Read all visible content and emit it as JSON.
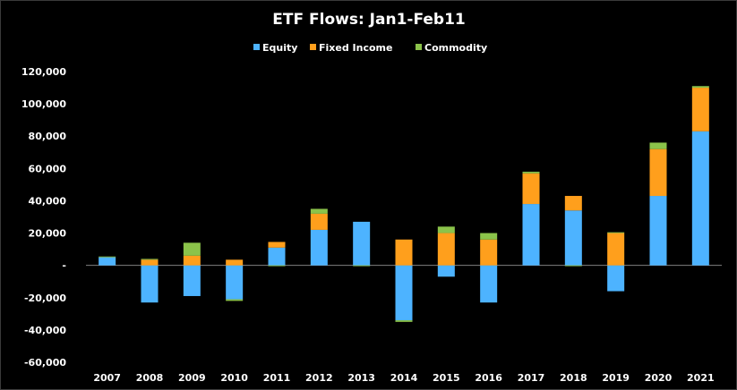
{
  "chart_data": {
    "type": "bar",
    "stacked": true,
    "title": "ETF Flows: Jan1-Feb11",
    "legend_position": "top",
    "grid": false,
    "ylim": [
      -60000,
      120000
    ],
    "y_ticks": [
      -60000,
      -40000,
      -20000,
      0,
      20000,
      40000,
      60000,
      80000,
      100000,
      120000
    ],
    "y_tick_labels": [
      "-60,000",
      "-40,000",
      "-20,000",
      "-",
      "20,000",
      "40,000",
      "60,000",
      "80,000",
      "100,000",
      "120,000"
    ],
    "categories": [
      "2007",
      "2008",
      "2009",
      "2010",
      "2011",
      "2012",
      "2013",
      "2014",
      "2015",
      "2016",
      "2017",
      "2018",
      "2019",
      "2020",
      "2021"
    ],
    "series": [
      {
        "name": "Equity",
        "color": "#4DB3FF",
        "values": [
          5000,
          -23000,
          -19000,
          -21000,
          11000,
          22000,
          27000,
          -34000,
          -7000,
          -23000,
          38000,
          34000,
          -16000,
          43000,
          83000
        ]
      },
      {
        "name": "Fixed Income",
        "color": "#FF9F1C",
        "values": [
          0,
          3500,
          6000,
          3500,
          3500,
          10000,
          0,
          16000,
          20000,
          16000,
          19000,
          9000,
          20000,
          29000,
          27000
        ]
      },
      {
        "name": "Commodity",
        "color": "#8BC34A",
        "values": [
          500,
          500,
          8000,
          -1000,
          -500,
          3000,
          -500,
          -1000,
          4000,
          4000,
          1000,
          -500,
          500,
          4000,
          1000
        ]
      }
    ]
  }
}
